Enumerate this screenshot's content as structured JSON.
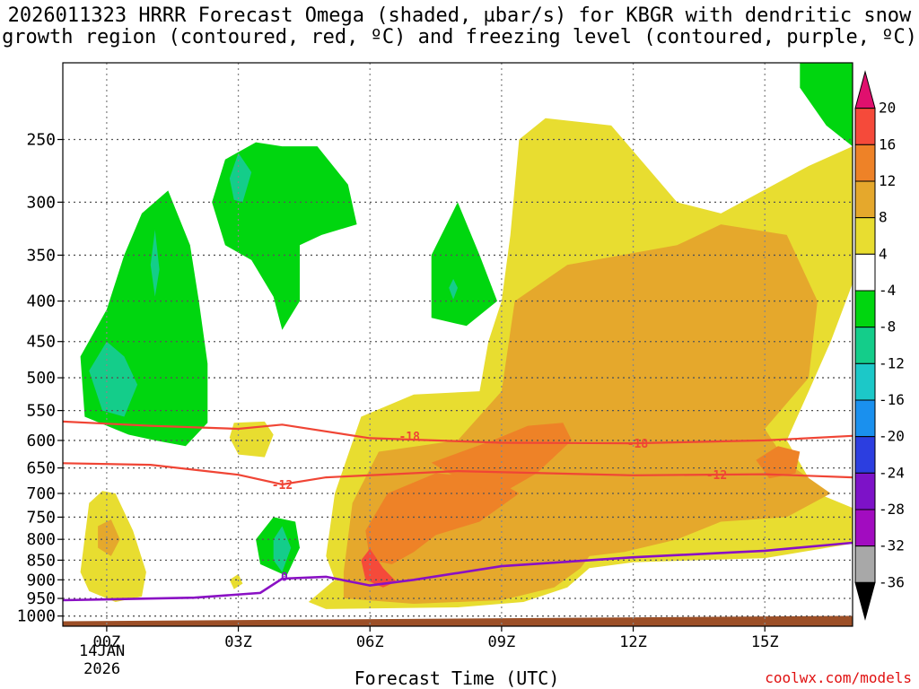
{
  "chart_data": {
    "type": "time-height cross-section",
    "title": "2026011323 HRRR Forecast Omega (shaded, µbar/s) for KBGR with dendritic snow\ngrowth region (contoured, red, ºC) and freezing level (contoured, purple, ºC)",
    "xlabel": "Forecast Time (UTC)",
    "x_ticks": [
      "00Z",
      "03Z",
      "06Z",
      "09Z",
      "12Z",
      "15Z"
    ],
    "x_tick_hours": [
      0,
      3,
      6,
      9,
      12,
      15
    ],
    "x_range_hours": [
      -1,
      17
    ],
    "x_date_label": "14JAN\n2026",
    "y_ticks": [
      250,
      300,
      350,
      400,
      450,
      500,
      550,
      600,
      650,
      700,
      750,
      800,
      850,
      900,
      950,
      1000
    ],
    "y_range_hPa": [
      200,
      1030
    ],
    "colorbar": {
      "labels": [
        "20",
        "16",
        "12",
        "8",
        "4",
        "-4",
        "-8",
        "-12",
        "-16",
        "-20",
        "-24",
        "-28",
        "-32",
        "-36"
      ],
      "colors": [
        "#e0106e",
        "#f54a3a",
        "#ee8227",
        "#e5a82c",
        "#e8dd30",
        "#ffffff",
        "#00d60f",
        "#14cd8a",
        "#1cc8c8",
        "#1a90ee",
        "#2c3ee0",
        "#7d12c8",
        "#a20cc0",
        "#a8a8a8",
        "#000000"
      ]
    },
    "dgz_contours": [
      {
        "label": "-18",
        "color": "#f04535",
        "points": [
          [
            -1,
            568
          ],
          [
            1,
            575
          ],
          [
            3,
            580
          ],
          [
            4,
            573
          ],
          [
            6,
            596
          ],
          [
            9,
            604
          ],
          [
            12,
            605
          ],
          [
            15,
            600
          ],
          [
            17,
            592
          ]
        ],
        "label_positions": [
          [
            6.9,
            592
          ],
          [
            12.1,
            605
          ]
        ]
      },
      {
        "label": "-12",
        "color": "#f04535",
        "points": [
          [
            -1,
            641
          ],
          [
            1,
            644
          ],
          [
            3,
            663
          ],
          [
            4,
            682
          ],
          [
            5,
            668
          ],
          [
            8,
            656
          ],
          [
            12,
            664
          ],
          [
            15,
            662
          ],
          [
            17,
            668
          ]
        ],
        "label_positions": [
          [
            4.0,
            682
          ],
          [
            13.9,
            663
          ]
        ]
      }
    ],
    "freezing_level": {
      "label": "0",
      "color": "#8a10c4",
      "points": [
        [
          -1,
          955
        ],
        [
          2,
          948
        ],
        [
          3.5,
          935
        ],
        [
          4,
          897
        ],
        [
          5,
          892
        ],
        [
          6,
          915
        ],
        [
          7,
          900
        ],
        [
          9,
          865
        ],
        [
          12,
          843
        ],
        [
          15,
          827
        ],
        [
          17,
          808
        ]
      ],
      "label_positions": [
        [
          4.05,
          891
        ]
      ]
    },
    "omega_regions": [
      {
        "class": "+4 to +8",
        "color": "#e8dd30",
        "points": [
          [
            9.4,
            250
          ],
          [
            10.0,
            235
          ],
          [
            11.5,
            240
          ],
          [
            13.0,
            300
          ],
          [
            14.0,
            310
          ],
          [
            16.0,
            270
          ],
          [
            17.0,
            255
          ],
          [
            17.0,
            380
          ],
          [
            16.5,
            450
          ],
          [
            16.0,
            520
          ],
          [
            15.5,
            600
          ],
          [
            16.2,
            700
          ],
          [
            17.0,
            730
          ],
          [
            17.0,
            810
          ],
          [
            15.0,
            845
          ],
          [
            12.0,
            855
          ],
          [
            11.0,
            870
          ],
          [
            10.5,
            920
          ],
          [
            9.5,
            960
          ],
          [
            8.0,
            975
          ],
          [
            5.0,
            980
          ],
          [
            4.6,
            960
          ],
          [
            5.2,
            900
          ],
          [
            5.0,
            840
          ],
          [
            5.2,
            700
          ],
          [
            5.8,
            560
          ],
          [
            7.0,
            525
          ],
          [
            8.5,
            520
          ],
          [
            8.7,
            450
          ],
          [
            9.0,
            400
          ],
          [
            9.2,
            330
          ]
        ]
      },
      {
        "class": "+4 to +8",
        "color": "#e8dd30",
        "points": [
          [
            -0.4,
            720
          ],
          [
            -0.1,
            695
          ],
          [
            0.2,
            700
          ],
          [
            0.6,
            780
          ],
          [
            0.9,
            880
          ],
          [
            0.8,
            945
          ],
          [
            0.2,
            960
          ],
          [
            -0.4,
            930
          ],
          [
            -0.6,
            880
          ]
        ]
      },
      {
        "class": "+4 to +8",
        "color": "#e8dd30",
        "points": [
          [
            2.8,
            595
          ],
          [
            2.9,
            570
          ],
          [
            3.6,
            568
          ],
          [
            3.8,
            590
          ],
          [
            3.6,
            630
          ],
          [
            3.0,
            625
          ]
        ]
      },
      {
        "class": "+4 to +8",
        "color": "#e8dd30",
        "points": [
          [
            2.8,
            900
          ],
          [
            3.0,
            885
          ],
          [
            3.1,
            910
          ],
          [
            2.9,
            925
          ]
        ]
      },
      {
        "class": "+8 to +12",
        "color": "#e5a82c",
        "points": [
          [
            9.3,
            400
          ],
          [
            10.5,
            360
          ],
          [
            13.0,
            340
          ],
          [
            14.0,
            320
          ],
          [
            15.5,
            330
          ],
          [
            16.2,
            400
          ],
          [
            16.0,
            500
          ],
          [
            15.0,
            580
          ],
          [
            15.5,
            640
          ],
          [
            16.5,
            700
          ],
          [
            15.5,
            750
          ],
          [
            14.0,
            760
          ],
          [
            13.0,
            800
          ],
          [
            11.8,
            830
          ],
          [
            11.0,
            840
          ],
          [
            10.8,
            870
          ],
          [
            10.2,
            920
          ],
          [
            9.0,
            955
          ],
          [
            7.0,
            965
          ],
          [
            5.4,
            950
          ],
          [
            5.4,
            880
          ],
          [
            5.6,
            720
          ],
          [
            6.2,
            620
          ],
          [
            8.0,
            600
          ],
          [
            9.0,
            520
          ]
        ]
      },
      {
        "class": "+8 to +12",
        "color": "#e5a82c",
        "points": [
          [
            -0.2,
            770
          ],
          [
            0.1,
            755
          ],
          [
            0.3,
            800
          ],
          [
            0.1,
            840
          ],
          [
            -0.2,
            820
          ]
        ]
      },
      {
        "class": "+12 to +16",
        "color": "#ee8227",
        "points": [
          [
            5.9,
            780
          ],
          [
            6.4,
            700
          ],
          [
            7.5,
            660
          ],
          [
            8.8,
            670
          ],
          [
            9.4,
            700
          ],
          [
            8.5,
            760
          ],
          [
            7.5,
            790
          ],
          [
            7.0,
            830
          ],
          [
            6.5,
            860
          ],
          [
            6.0,
            850
          ]
        ]
      },
      {
        "class": "+12 to +16",
        "color": "#ee8227",
        "points": [
          [
            7.4,
            640
          ],
          [
            8.8,
            600
          ],
          [
            9.6,
            575
          ],
          [
            10.4,
            570
          ],
          [
            10.6,
            600
          ],
          [
            9.8,
            660
          ],
          [
            9.0,
            700
          ],
          [
            8.2,
            680
          ]
        ]
      },
      {
        "class": "+12 to +16",
        "color": "#ee8227",
        "points": [
          [
            14.8,
            635
          ],
          [
            15.3,
            610
          ],
          [
            15.8,
            620
          ],
          [
            15.7,
            660
          ],
          [
            15.1,
            670
          ]
        ]
      },
      {
        "class": "+16 to +20",
        "color": "#f54a3a",
        "points": [
          [
            5.8,
            850
          ],
          [
            6.0,
            822
          ],
          [
            6.3,
            870
          ],
          [
            6.6,
            905
          ],
          [
            6.3,
            920
          ],
          [
            5.9,
            900
          ]
        ]
      },
      {
        "class": "-4 to -8",
        "color": "#00d60f",
        "points": [
          [
            0.8,
            310
          ],
          [
            1.4,
            290
          ],
          [
            1.9,
            340
          ],
          [
            2.1,
            400
          ],
          [
            2.3,
            480
          ],
          [
            2.3,
            570
          ],
          [
            1.8,
            610
          ],
          [
            1.1,
            600
          ],
          [
            0.5,
            590
          ],
          [
            -0.5,
            560
          ],
          [
            -0.6,
            470
          ],
          [
            0.0,
            410
          ],
          [
            0.4,
            350
          ]
        ]
      },
      {
        "class": "-4 to -8",
        "color": "#00d60f",
        "points": [
          [
            2.4,
            300
          ],
          [
            2.7,
            265
          ],
          [
            3.4,
            252
          ],
          [
            4.0,
            255
          ],
          [
            4.8,
            255
          ],
          [
            5.5,
            285
          ],
          [
            5.7,
            320
          ],
          [
            4.9,
            330
          ],
          [
            4.4,
            340
          ],
          [
            4.4,
            400
          ],
          [
            4.0,
            435
          ],
          [
            3.8,
            395
          ],
          [
            3.3,
            355
          ],
          [
            2.7,
            340
          ]
        ]
      },
      {
        "class": "-4 to -8",
        "color": "#00d60f",
        "points": [
          [
            7.4,
            350
          ],
          [
            8.0,
            300
          ],
          [
            8.5,
            350
          ],
          [
            8.9,
            400
          ],
          [
            8.2,
            430
          ],
          [
            7.4,
            420
          ]
        ]
      },
      {
        "class": "-4 to -8",
        "color": "#00d60f",
        "points": [
          [
            3.4,
            800
          ],
          [
            3.8,
            750
          ],
          [
            4.3,
            760
          ],
          [
            4.4,
            820
          ],
          [
            4.1,
            890
          ],
          [
            3.5,
            860
          ]
        ]
      },
      {
        "class": "-4 to -8",
        "color": "#00d60f",
        "points": [
          [
            15.8,
            200
          ],
          [
            17.0,
            200
          ],
          [
            17.0,
            255
          ],
          [
            16.4,
            240
          ],
          [
            15.8,
            215
          ]
        ]
      },
      {
        "class": "-8 to -12",
        "color": "#14cd8a",
        "points": [
          [
            -0.4,
            490
          ],
          [
            0.0,
            450
          ],
          [
            0.4,
            470
          ],
          [
            0.7,
            510
          ],
          [
            0.4,
            560
          ],
          [
            -0.1,
            550
          ]
        ]
      },
      {
        "class": "-8 to -12",
        "color": "#14cd8a",
        "points": [
          [
            2.8,
            280
          ],
          [
            3.0,
            260
          ],
          [
            3.3,
            275
          ],
          [
            3.1,
            300
          ],
          [
            2.9,
            298
          ]
        ]
      },
      {
        "class": "-8 to -12",
        "color": "#14cd8a",
        "points": [
          [
            1.0,
            360
          ],
          [
            1.1,
            325
          ],
          [
            1.2,
            365
          ],
          [
            1.1,
            395
          ]
        ]
      },
      {
        "class": "-8 to -12",
        "color": "#14cd8a",
        "points": [
          [
            7.8,
            385
          ],
          [
            7.9,
            375
          ],
          [
            8.0,
            385
          ],
          [
            7.9,
            398
          ]
        ]
      },
      {
        "class": "-8 to -12",
        "color": "#14cd8a",
        "points": [
          [
            3.8,
            800
          ],
          [
            4.0,
            770
          ],
          [
            4.2,
            820
          ],
          [
            4.0,
            880
          ],
          [
            3.8,
            850
          ]
        ]
      }
    ],
    "terrain": {
      "color": "#9c4f27",
      "surface_pressure": 1010
    }
  },
  "credit": "coolwx.com/models"
}
